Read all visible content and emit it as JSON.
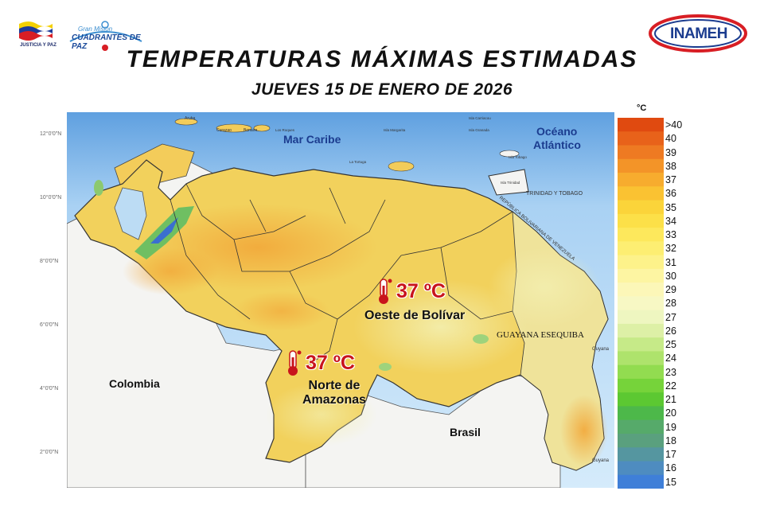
{
  "header": {
    "left_logo_text": "JUSTICIA Y PAZ",
    "mid_logo_small": "Gran Misión",
    "mid_logo_big": "CUADRANTES DE PAZ",
    "right_logo_text": "INAMEH",
    "title": "TEMPERATURAS MÁXIMAS ESTIMADAS",
    "subtitle": "JUEVES 15 DE ENERO DE 2026"
  },
  "map": {
    "sea_labels": {
      "caribe": "Mar Caribe",
      "oceano_1": "Océano",
      "oceano_2": "Atlántico"
    },
    "country_labels": {
      "colombia": "Colombia",
      "brasil": "Brasil",
      "guyana_esequiba": "GUAYANA ESEQUIBA",
      "trinidad": "TRINIDAD Y TOBAGO",
      "guyana_1": "Guyana",
      "guyana_2": "Guyana",
      "border": "REPÚBLICA BOLIVARIANA DE VENEZUELA"
    },
    "small_labels": {
      "aruba": "Aruba",
      "curacao": "Curazao",
      "bonaire": "Bonaire",
      "los_roques": "Los Roques",
      "tortuga": "La Tortuga",
      "margarita": "Isla Margarita",
      "carriacou": "Isla Carriacou",
      "granada": "Isla Granada",
      "tobago": "Isla Tobago",
      "trinidad_isla": "Isla Trinidad"
    },
    "lat_ticks": [
      "12°0'0\"N",
      "10°0'0\"N",
      "8°0'0\"N",
      "6°0'0\"N",
      "4°0'0\"N",
      "2°0'0\"N"
    ],
    "callouts": [
      {
        "value": "37 ºC",
        "region": "Oeste de Bolívar"
      },
      {
        "value": "37 ºC",
        "region_line1": "Norte de",
        "region_line2": "Amazonas"
      }
    ]
  },
  "legend": {
    "unit": "°C",
    "items": [
      {
        "label": ">40",
        "color": "#e04a10"
      },
      {
        "label": "40",
        "color": "#e8621a"
      },
      {
        "label": "39",
        "color": "#ee7a22"
      },
      {
        "label": "38",
        "color": "#f39428"
      },
      {
        "label": "37",
        "color": "#f7ac2e"
      },
      {
        "label": "36",
        "color": "#fac232"
      },
      {
        "label": "35",
        "color": "#fbd43a"
      },
      {
        "label": "34",
        "color": "#fce048"
      },
      {
        "label": "33",
        "color": "#fde85c"
      },
      {
        "label": "32",
        "color": "#fdee72"
      },
      {
        "label": "31",
        "color": "#fdf28a"
      },
      {
        "label": "30",
        "color": "#fdf5a2"
      },
      {
        "label": "29",
        "color": "#fcf7b8"
      },
      {
        "label": "28",
        "color": "#f7f8c4"
      },
      {
        "label": "27",
        "color": "#eef6c0"
      },
      {
        "label": "26",
        "color": "#ddf0a6"
      },
      {
        "label": "25",
        "color": "#c6ea88"
      },
      {
        "label": "24",
        "color": "#aee36c"
      },
      {
        "label": "23",
        "color": "#92dc50"
      },
      {
        "label": "22",
        "color": "#76d33a"
      },
      {
        "label": "21",
        "color": "#5cc832"
      },
      {
        "label": "20",
        "color": "#4db84a"
      },
      {
        "label": "19",
        "color": "#56aa6a"
      },
      {
        "label": "18",
        "color": "#5aa07e"
      },
      {
        "label": "17",
        "color": "#5596a0"
      },
      {
        "label": "16",
        "color": "#4e8cc0"
      },
      {
        "label": "15",
        "color": "#3f7fd8"
      }
    ]
  }
}
